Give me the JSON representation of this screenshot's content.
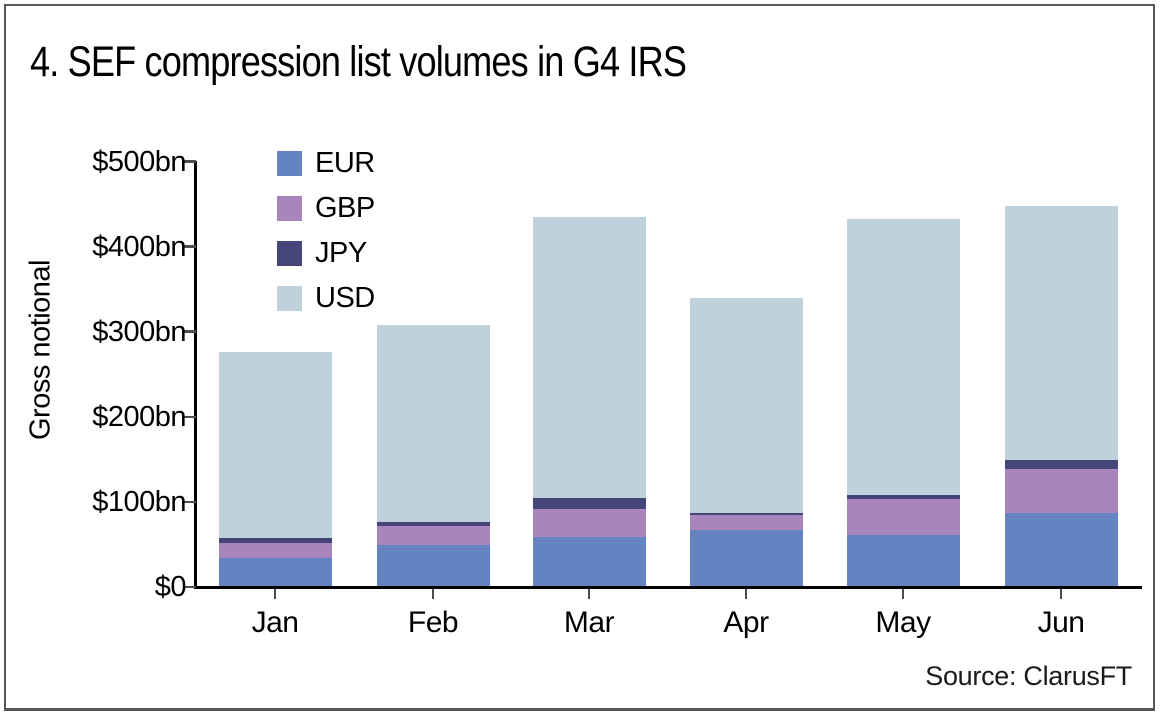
{
  "title": "4. SEF compression list volumes in G4 IRS",
  "source": "Source: ClarusFT",
  "chart_data": {
    "type": "bar",
    "stacked": true,
    "title": "4. SEF compression list volumes in G4 IRS",
    "xlabel": "",
    "ylabel": "Gross notional",
    "categories": [
      "Jan",
      "Feb",
      "Mar",
      "Apr",
      "May",
      "Jun"
    ],
    "series": [
      {
        "name": "EUR",
        "color": "#6583c1",
        "values": [
          33,
          48,
          58,
          66,
          60,
          86
        ]
      },
      {
        "name": "GBP",
        "color": "#a885bc",
        "values": [
          17,
          22,
          33,
          17,
          42,
          51
        ]
      },
      {
        "name": "JPY",
        "color": "#45457a",
        "values": [
          6,
          5,
          12,
          3,
          5,
          11
        ]
      },
      {
        "name": "USD",
        "color": "#bfd1da",
        "values": [
          219,
          232,
          331,
          253,
          324,
          299
        ]
      }
    ],
    "totals": [
      275,
      307,
      434,
      339,
      431,
      447
    ],
    "ylim": [
      0,
      500
    ],
    "ytick_values": [
      0,
      100,
      200,
      300,
      400,
      500
    ],
    "ytick_labels": [
      "$0",
      "$100bn",
      "$200bn",
      "$300bn",
      "$400bn",
      "$500bn"
    ],
    "units": "USD billions gross notional",
    "grid": false,
    "legend_position": "top-left-inside",
    "legend_entries": [
      "EUR",
      "GBP",
      "JPY",
      "USD"
    ]
  }
}
